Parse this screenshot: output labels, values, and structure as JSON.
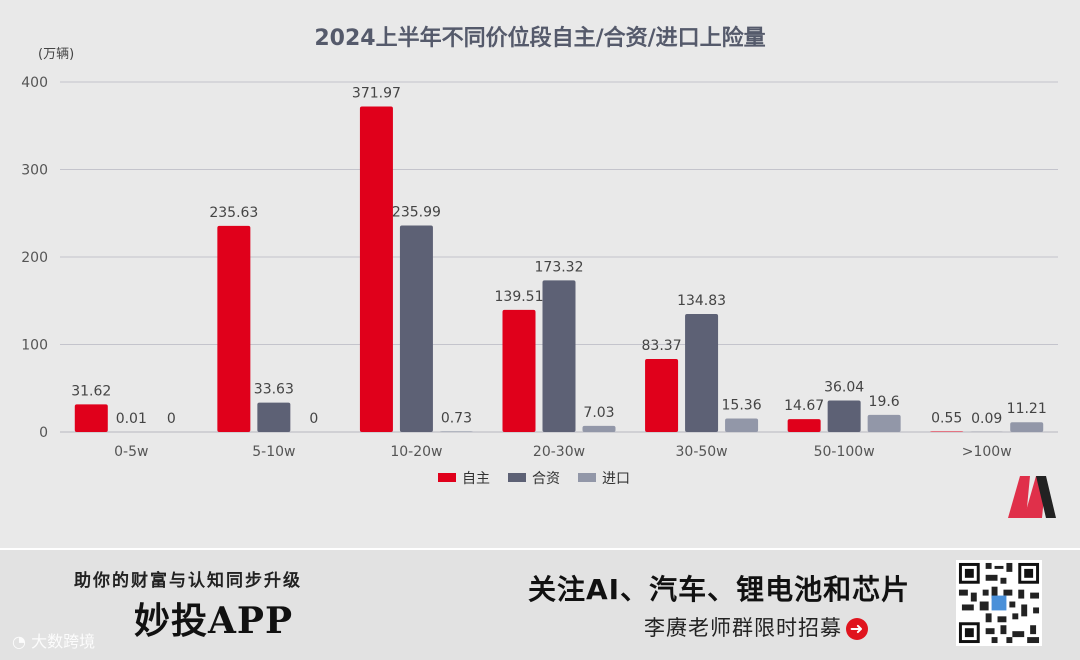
{
  "chart_data": {
    "type": "bar",
    "title": "2024上半年不同价位段自主/合资/进口上险量",
    "unit_label": "(万辆)",
    "ylim": [
      0,
      400
    ],
    "yticks": [
      0,
      100,
      200,
      300,
      400
    ],
    "categories": [
      "0-5w",
      "5-10w",
      "10-20w",
      "20-30w",
      "30-50w",
      "50-100w",
      ">100w"
    ],
    "series": [
      {
        "name": "自主",
        "color": "#e0001b",
        "values": [
          31.62,
          235.63,
          371.97,
          139.51,
          83.37,
          14.67,
          0.55
        ]
      },
      {
        "name": "合资",
        "color": "#5d6175",
        "values": [
          0.01,
          33.63,
          235.99,
          173.32,
          134.83,
          36.04,
          0.09
        ]
      },
      {
        "name": "进口",
        "color": "#9297a8",
        "values": [
          0,
          0,
          0.73,
          7.03,
          15.36,
          19.6,
          11.21
        ]
      }
    ],
    "legend_position": "bottom"
  },
  "banner": {
    "slogan": "助你的财富与认知同步升级",
    "app_name": "妙投APP",
    "follow_text": "关注AI、汽车、锂电池和芯片",
    "recruit_text": "李赓老师群限时招募",
    "watermark": "大数跨境"
  }
}
